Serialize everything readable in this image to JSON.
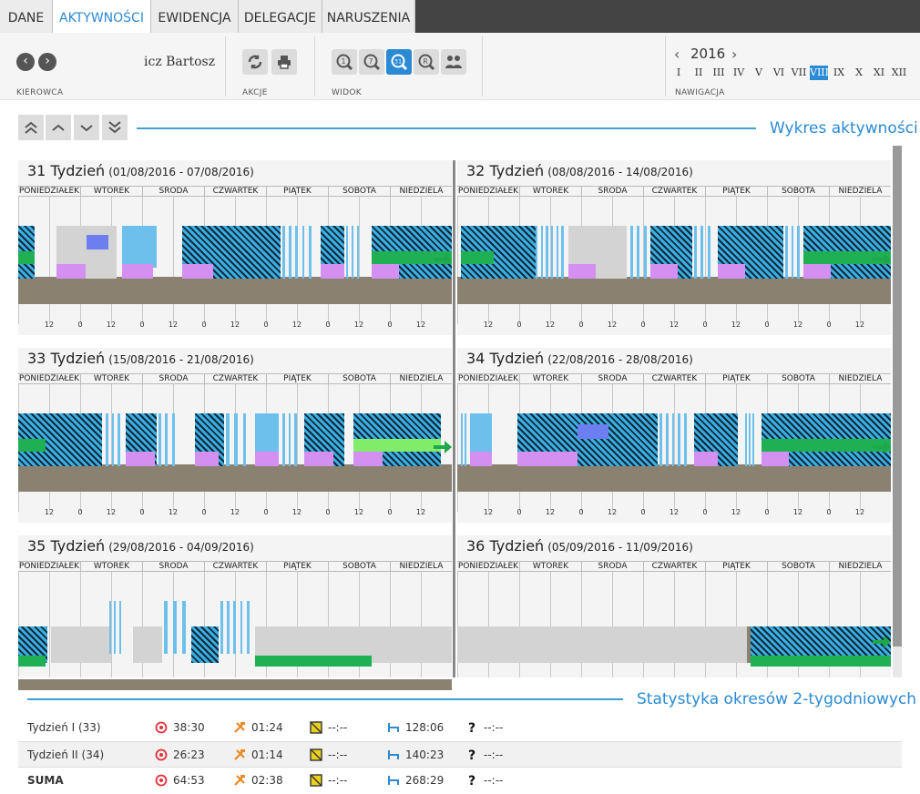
{
  "tabs": [
    {
      "label": "DANE"
    },
    {
      "label": "AKTYWNOŚCI"
    },
    {
      "label": "EWIDENCJA"
    },
    {
      "label": "DELEGACJE"
    },
    {
      "label": "NARUSZENIA"
    }
  ],
  "toolbar": {
    "driver_name": "icz Bartosz",
    "driver_label": "KIEROWCA",
    "actions_label": "AKCJE",
    "view_label": "WIDOK",
    "nav_label": "NAWIGACJA",
    "year": "2016",
    "months": [
      "I",
      "II",
      "III",
      "IV",
      "V",
      "VI",
      "VII",
      "VIII",
      "IX",
      "X",
      "XI",
      "XII"
    ],
    "active_month": "VIII"
  },
  "chart_section": {
    "title": "Wykres aktywności"
  },
  "days": [
    "PONIEDZIAŁEK",
    "WTOREK",
    "ŚRODA",
    "CZWARTEK",
    "PIĄTEK",
    "SOBOTA",
    "NIEDZIELA"
  ],
  "ticks": [
    "12",
    "0",
    "12",
    "0",
    "12",
    "0",
    "12",
    "0",
    "12",
    "0",
    "12",
    "0",
    "12"
  ],
  "weeks": [
    {
      "title": "31 Tydzień",
      "range": "(01/08/2016 - 07/08/2016)"
    },
    {
      "title": "32 Tydzień",
      "range": "(08/08/2016 - 14/08/2016)"
    },
    {
      "title": "33 Tydzień",
      "range": "(15/08/2016 - 21/08/2016)"
    },
    {
      "title": "34 Tydzień",
      "range": "(22/08/2016 - 28/08/2016)"
    },
    {
      "title": "35 Tydzień",
      "range": "(29/08/2016 - 04/09/2016)"
    },
    {
      "title": "36 Tydzień",
      "range": "(05/09/2016 - 11/09/2016)"
    }
  ],
  "colors": {
    "accent": "#2a8ad4",
    "drive": "#6ec0ec",
    "rest": "#1fb054",
    "work": "#d490f0",
    "avail": "#6c7ef0",
    "idle": "#d3d3d3",
    "base": "#8a8170",
    "arrow": "#1fa84a"
  },
  "stats": {
    "title": "Statystyka okresów 2-tygodniowych",
    "rows": [
      {
        "label": "Tydzień I (33)",
        "drive": "38:30",
        "work": "01:24",
        "avail": "--:--",
        "rest": "128:06",
        "unknown": "--:--",
        "bold": false
      },
      {
        "label": "Tydzień II (34)",
        "drive": "26:23",
        "work": "01:14",
        "avail": "--:--",
        "rest": "140:23",
        "unknown": "--:--",
        "bold": false
      },
      {
        "label": "SUMA",
        "drive": "64:53",
        "work": "02:38",
        "avail": "--:--",
        "rest": "268:29",
        "unknown": "--:--",
        "bold": true
      }
    ]
  }
}
